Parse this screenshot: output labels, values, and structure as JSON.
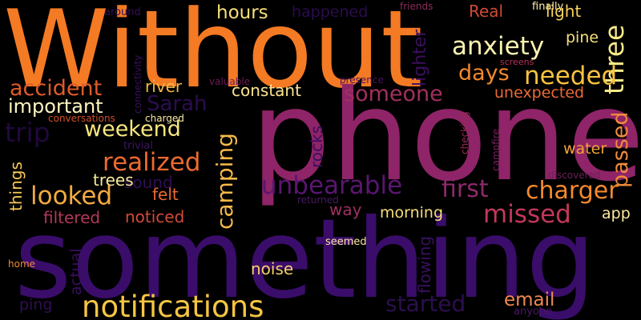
{
  "words": [
    {
      "id": "w-without",
      "text": "Without",
      "color": "#f47a24"
    },
    {
      "id": "w-phone",
      "text": "phone",
      "color": "#8f2468"
    },
    {
      "id": "w-something",
      "text": "something",
      "color": "#3a0d6a"
    },
    {
      "id": "w-notifications",
      "text": "notifications",
      "color": "#f6c543"
    },
    {
      "id": "w-hours",
      "text": "hours",
      "color": "#f7e07a"
    },
    {
      "id": "w-happened",
      "text": "happened",
      "color": "#2b0c4d"
    },
    {
      "id": "w-real",
      "text": "Real",
      "color": "#d24a36"
    },
    {
      "id": "w-finally",
      "text": "finally",
      "color": "#fff1a8"
    },
    {
      "id": "w-light",
      "text": "light",
      "color": "#f7d25a"
    },
    {
      "id": "w-friends",
      "text": "friends",
      "color": "#8a2c5a"
    },
    {
      "id": "w-around",
      "text": "around",
      "color": "#350f58"
    },
    {
      "id": "w-three",
      "text": "three",
      "color": "#f7ea88"
    },
    {
      "id": "w-anxiety",
      "text": "anxiety",
      "color": "#fbf3b0"
    },
    {
      "id": "w-pine",
      "text": "pine",
      "color": "#f7e07a"
    },
    {
      "id": "w-screens",
      "text": "screens",
      "color": "#b8305a"
    },
    {
      "id": "w-days",
      "text": "days",
      "color": "#f28a2a"
    },
    {
      "id": "w-needed",
      "text": "needed",
      "color": "#f7c23e"
    },
    {
      "id": "w-lighter",
      "text": "lighter",
      "color": "#3b0f5e"
    },
    {
      "id": "w-accident",
      "text": "accident",
      "color": "#e05a2a"
    },
    {
      "id": "w-river",
      "text": "river",
      "color": "#f6b94a"
    },
    {
      "id": "w-valuable",
      "text": "valuable",
      "color": "#6e1a57"
    },
    {
      "id": "w-presence",
      "text": "presence",
      "color": "#4a1062"
    },
    {
      "id": "w-important",
      "text": "important",
      "color": "#fdf4c0"
    },
    {
      "id": "w-sarah",
      "text": "Sarah",
      "color": "#2c0d4f"
    },
    {
      "id": "w-constant",
      "text": "constant",
      "color": "#fbe592"
    },
    {
      "id": "w-someone",
      "text": "someone",
      "color": "#a0305e"
    },
    {
      "id": "w-unexpected",
      "text": "unexpected",
      "color": "#ea6a33"
    },
    {
      "id": "w-passed",
      "text": "passed",
      "color": "#f08a3a"
    },
    {
      "id": "w-connectivity",
      "text": "connectivity",
      "color": "#3a0f60"
    },
    {
      "id": "w-conversations",
      "text": "conversations",
      "color": "#d0502a"
    },
    {
      "id": "w-charged",
      "text": "charged",
      "color": "#fbe9a0"
    },
    {
      "id": "w-trip",
      "text": "trip",
      "color": "#20093d"
    },
    {
      "id": "w-weekend",
      "text": "weekend",
      "color": "#f6e77e"
    },
    {
      "id": "w-trivial",
      "text": "trivial",
      "color": "#3c1560"
    },
    {
      "id": "w-rocks",
      "text": "rocks",
      "color": "#3a0f60"
    },
    {
      "id": "w-checking",
      "text": "checking",
      "color": "#9c2a56"
    },
    {
      "id": "w-campfire",
      "text": "campfire",
      "color": "#7a1f5e"
    },
    {
      "id": "w-water",
      "text": "water",
      "color": "#f3a332"
    },
    {
      "id": "w-realized",
      "text": "realized",
      "color": "#ec6a30"
    },
    {
      "id": "w-sound",
      "text": "sound",
      "color": "#2f0f52"
    },
    {
      "id": "w-trees",
      "text": "trees",
      "color": "#f7ea9a"
    },
    {
      "id": "w-camping",
      "text": "camping",
      "color": "#f6b84a"
    },
    {
      "id": "w-unbearable",
      "text": "unbearable",
      "color": "#5a1670"
    },
    {
      "id": "w-first",
      "text": "first",
      "color": "#8c2a6a"
    },
    {
      "id": "w-charger",
      "text": "charger",
      "color": "#f38a2e"
    },
    {
      "id": "w-discovered",
      "text": "discovered",
      "color": "#6e1f58"
    },
    {
      "id": "w-things",
      "text": "things",
      "color": "#f6c85a"
    },
    {
      "id": "w-looked",
      "text": "looked",
      "color": "#f3aa40"
    },
    {
      "id": "w-felt",
      "text": "felt",
      "color": "#ec6a30"
    },
    {
      "id": "w-returned",
      "text": "returned",
      "color": "#4a1668"
    },
    {
      "id": "w-way",
      "text": "way",
      "color": "#9e305f"
    },
    {
      "id": "w-missed",
      "text": "missed",
      "color": "#c2385a"
    },
    {
      "id": "w-app",
      "text": "app",
      "color": "#fbe9a0"
    },
    {
      "id": "w-filtered",
      "text": "filtered",
      "color": "#b23758"
    },
    {
      "id": "w-noticed",
      "text": "noticed",
      "color": "#d04a3a"
    },
    {
      "id": "w-morning",
      "text": "morning",
      "color": "#f7df7a"
    },
    {
      "id": "w-seemed",
      "text": "seemed",
      "color": "#fbe9a0"
    },
    {
      "id": "w-home",
      "text": "home",
      "color": "#f08a3a"
    },
    {
      "id": "w-actual",
      "text": "actual",
      "color": "#3a0f60"
    },
    {
      "id": "w-flowing",
      "text": "flowing",
      "color": "#3a0f60"
    },
    {
      "id": "w-noise",
      "text": "noise",
      "color": "#f7d06a"
    },
    {
      "id": "w-ping",
      "text": "ping",
      "color": "#2f0f52"
    },
    {
      "id": "w-started",
      "text": "started",
      "color": "#2c0f4e"
    },
    {
      "id": "w-email",
      "text": "email",
      "color": "#f08a52"
    },
    {
      "id": "w-anyone",
      "text": "anyone",
      "color": "#4a1668"
    }
  ]
}
